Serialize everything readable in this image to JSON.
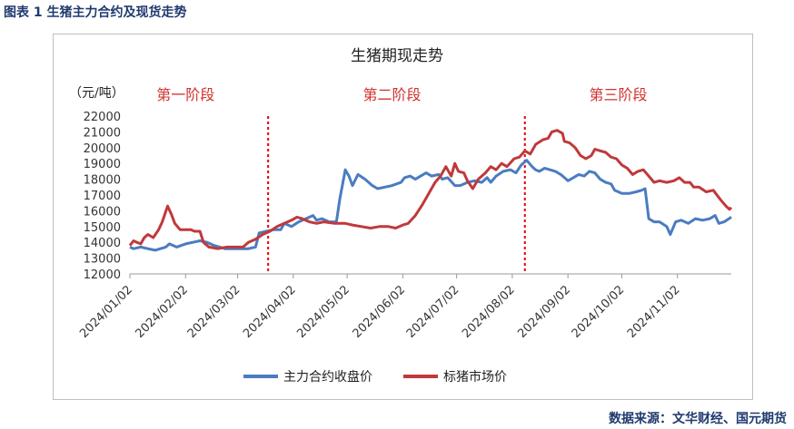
{
  "caption": "图表 1  生猪主力合约及现货走势",
  "source": "数据来源：文华财经、国元期货",
  "colors": {
    "futures": "#4a7cc0",
    "spot": "#c0393b",
    "divider": "#e0000c",
    "stage": "#d0312d"
  },
  "chart_data": {
    "type": "line",
    "title": "生猪期现走势",
    "ylabel": "（元/吨）",
    "ylim": [
      12000,
      22000
    ],
    "yticks": [
      12000,
      13000,
      14000,
      15000,
      16000,
      17000,
      18000,
      19000,
      20000,
      21000,
      22000
    ],
    "x_start": "2024-01-02",
    "x_end": "2024-12-02",
    "xticks": [
      "2024/01/02",
      "2024/02/02",
      "2024/03/02",
      "2024/04/02",
      "2024/05/02",
      "2024/06/02",
      "2024/07/02",
      "2024/08/02",
      "2024/09/02",
      "2024/10/02",
      "2024/11/02"
    ],
    "tick_dates": [
      "2024-01-02",
      "2024-02-02",
      "2024-03-02",
      "2024-04-02",
      "2024-05-02",
      "2024-06-02",
      "2024-07-02",
      "2024-08-02",
      "2024-09-02",
      "2024-10-02",
      "2024-11-02"
    ],
    "stage_dividers": [
      "2024-03-19",
      "2024-08-09"
    ],
    "stages": [
      {
        "label": "第一阶段",
        "center": "2024-02-02"
      },
      {
        "label": "第二阶段",
        "center": "2024-05-27"
      },
      {
        "label": "第三阶段",
        "center": "2024-09-30"
      }
    ],
    "series": [
      {
        "name": "主力合约收盘价",
        "color": "#4a7cc0",
        "points": [
          [
            "2024-01-02",
            13700
          ],
          [
            "2024-01-04",
            13600
          ],
          [
            "2024-01-08",
            13700
          ],
          [
            "2024-01-12",
            13600
          ],
          [
            "2024-01-16",
            13500
          ],
          [
            "2024-01-22",
            13700
          ],
          [
            "2024-01-24",
            13900
          ],
          [
            "2024-01-28",
            13700
          ],
          [
            "2024-02-02",
            13900
          ],
          [
            "2024-02-06",
            14000
          ],
          [
            "2024-02-10",
            14100
          ],
          [
            "2024-02-14",
            14000
          ],
          [
            "2024-02-18",
            13800
          ],
          [
            "2024-02-24",
            13600
          ],
          [
            "2024-03-02",
            13600
          ],
          [
            "2024-03-08",
            13600
          ],
          [
            "2024-03-12",
            13700
          ],
          [
            "2024-03-14",
            14600
          ],
          [
            "2024-03-18",
            14700
          ],
          [
            "2024-03-22",
            14800
          ],
          [
            "2024-03-26",
            14800
          ],
          [
            "2024-03-28",
            15200
          ],
          [
            "2024-04-01",
            15000
          ],
          [
            "2024-04-05",
            15300
          ],
          [
            "2024-04-09",
            15500
          ],
          [
            "2024-04-13",
            15700
          ],
          [
            "2024-04-15",
            15400
          ],
          [
            "2024-04-18",
            15500
          ],
          [
            "2024-04-22",
            15300
          ],
          [
            "2024-04-26",
            15300
          ],
          [
            "2024-04-28",
            16800
          ],
          [
            "2024-05-01",
            18600
          ],
          [
            "2024-05-03",
            18200
          ],
          [
            "2024-05-05",
            17600
          ],
          [
            "2024-05-08",
            18300
          ],
          [
            "2024-05-12",
            18000
          ],
          [
            "2024-05-16",
            17600
          ],
          [
            "2024-05-19",
            17400
          ],
          [
            "2024-05-23",
            17500
          ],
          [
            "2024-05-27",
            17600
          ],
          [
            "2024-06-01",
            17800
          ],
          [
            "2024-06-03",
            18100
          ],
          [
            "2024-06-06",
            18200
          ],
          [
            "2024-06-09",
            18000
          ],
          [
            "2024-06-12",
            18200
          ],
          [
            "2024-06-15",
            18400
          ],
          [
            "2024-06-18",
            18200
          ],
          [
            "2024-06-22",
            18300
          ],
          [
            "2024-06-24",
            18000
          ],
          [
            "2024-06-27",
            18100
          ],
          [
            "2024-07-01",
            17600
          ],
          [
            "2024-07-04",
            17600
          ],
          [
            "2024-07-08",
            17800
          ],
          [
            "2024-07-12",
            17900
          ],
          [
            "2024-07-16",
            17800
          ],
          [
            "2024-07-19",
            18100
          ],
          [
            "2024-07-21",
            17800
          ],
          [
            "2024-07-24",
            18200
          ],
          [
            "2024-07-28",
            18500
          ],
          [
            "2024-08-01",
            18600
          ],
          [
            "2024-08-04",
            18400
          ],
          [
            "2024-08-07",
            18900
          ],
          [
            "2024-08-10",
            19200
          ],
          [
            "2024-08-13",
            18800
          ],
          [
            "2024-08-15",
            18600
          ],
          [
            "2024-08-17",
            18500
          ],
          [
            "2024-08-20",
            18700
          ],
          [
            "2024-08-23",
            18600
          ],
          [
            "2024-08-26",
            18500
          ],
          [
            "2024-08-29",
            18300
          ],
          [
            "2024-09-02",
            17900
          ],
          [
            "2024-09-05",
            18100
          ],
          [
            "2024-09-08",
            18300
          ],
          [
            "2024-09-11",
            18200
          ],
          [
            "2024-09-14",
            18500
          ],
          [
            "2024-09-17",
            18400
          ],
          [
            "2024-09-20",
            18000
          ],
          [
            "2024-09-23",
            17800
          ],
          [
            "2024-09-26",
            17700
          ],
          [
            "2024-09-28",
            17300
          ],
          [
            "2024-10-02",
            17100
          ],
          [
            "2024-10-06",
            17100
          ],
          [
            "2024-10-10",
            17200
          ],
          [
            "2024-10-13",
            17300
          ],
          [
            "2024-10-15",
            17400
          ],
          [
            "2024-10-17",
            15500
          ],
          [
            "2024-10-20",
            15300
          ],
          [
            "2024-10-23",
            15300
          ],
          [
            "2024-10-27",
            15000
          ],
          [
            "2024-10-29",
            14500
          ],
          [
            "2024-11-01",
            15300
          ],
          [
            "2024-11-04",
            15400
          ],
          [
            "2024-11-08",
            15200
          ],
          [
            "2024-11-12",
            15500
          ],
          [
            "2024-11-16",
            15400
          ],
          [
            "2024-11-20",
            15500
          ],
          [
            "2024-11-23",
            15700
          ],
          [
            "2024-11-25",
            15200
          ],
          [
            "2024-11-28",
            15300
          ],
          [
            "2024-12-02",
            15600
          ]
        ]
      },
      {
        "name": "标猪市场价",
        "color": "#c0393b",
        "points": [
          [
            "2024-01-02",
            13800
          ],
          [
            "2024-01-04",
            14100
          ],
          [
            "2024-01-06",
            14000
          ],
          [
            "2024-01-08",
            13900
          ],
          [
            "2024-01-10",
            14300
          ],
          [
            "2024-01-12",
            14500
          ],
          [
            "2024-01-15",
            14300
          ],
          [
            "2024-01-18",
            14800
          ],
          [
            "2024-01-20",
            15300
          ],
          [
            "2024-01-23",
            16300
          ],
          [
            "2024-01-25",
            15800
          ],
          [
            "2024-01-27",
            15200
          ],
          [
            "2024-01-30",
            14800
          ],
          [
            "2024-02-02",
            14800
          ],
          [
            "2024-02-05",
            14800
          ],
          [
            "2024-02-07",
            14700
          ],
          [
            "2024-02-10",
            14700
          ],
          [
            "2024-02-12",
            14000
          ],
          [
            "2024-02-15",
            13700
          ],
          [
            "2024-02-20",
            13600
          ],
          [
            "2024-02-25",
            13700
          ],
          [
            "2024-03-02",
            13700
          ],
          [
            "2024-03-05",
            13700
          ],
          [
            "2024-03-08",
            14000
          ],
          [
            "2024-03-12",
            14200
          ],
          [
            "2024-03-16",
            14500
          ],
          [
            "2024-03-20",
            14700
          ],
          [
            "2024-03-24",
            15000
          ],
          [
            "2024-03-28",
            15200
          ],
          [
            "2024-04-01",
            15400
          ],
          [
            "2024-04-04",
            15600
          ],
          [
            "2024-04-07",
            15500
          ],
          [
            "2024-04-11",
            15300
          ],
          [
            "2024-04-15",
            15200
          ],
          [
            "2024-04-19",
            15300
          ],
          [
            "2024-04-25",
            15200
          ],
          [
            "2024-05-01",
            15200
          ],
          [
            "2024-05-05",
            15100
          ],
          [
            "2024-05-10",
            15000
          ],
          [
            "2024-05-15",
            14900
          ],
          [
            "2024-05-20",
            15000
          ],
          [
            "2024-05-25",
            15000
          ],
          [
            "2024-05-29",
            14900
          ],
          [
            "2024-06-02",
            15100
          ],
          [
            "2024-06-05",
            15200
          ],
          [
            "2024-06-09",
            15700
          ],
          [
            "2024-06-13",
            16400
          ],
          [
            "2024-06-17",
            17200
          ],
          [
            "2024-06-20",
            17800
          ],
          [
            "2024-06-23",
            18200
          ],
          [
            "2024-06-26",
            18800
          ],
          [
            "2024-06-29",
            18200
          ],
          [
            "2024-07-01",
            19000
          ],
          [
            "2024-07-03",
            18500
          ],
          [
            "2024-07-06",
            18400
          ],
          [
            "2024-07-08",
            17900
          ],
          [
            "2024-07-11",
            17400
          ],
          [
            "2024-07-14",
            18000
          ],
          [
            "2024-07-18",
            18400
          ],
          [
            "2024-07-21",
            18800
          ],
          [
            "2024-07-24",
            18600
          ],
          [
            "2024-07-27",
            19000
          ],
          [
            "2024-07-30",
            18800
          ],
          [
            "2024-08-03",
            19300
          ],
          [
            "2024-08-06",
            19400
          ],
          [
            "2024-08-09",
            19800
          ],
          [
            "2024-08-12",
            19600
          ],
          [
            "2024-08-15",
            20200
          ],
          [
            "2024-08-19",
            20500
          ],
          [
            "2024-08-22",
            20600
          ],
          [
            "2024-08-24",
            21000
          ],
          [
            "2024-08-27",
            21100
          ],
          [
            "2024-08-30",
            20900
          ],
          [
            "2024-08-31",
            20400
          ],
          [
            "2024-09-03",
            20300
          ],
          [
            "2024-09-06",
            20000
          ],
          [
            "2024-09-09",
            19500
          ],
          [
            "2024-09-12",
            19300
          ],
          [
            "2024-09-15",
            19500
          ],
          [
            "2024-09-17",
            19900
          ],
          [
            "2024-09-20",
            19800
          ],
          [
            "2024-09-23",
            19700
          ],
          [
            "2024-09-26",
            19400
          ],
          [
            "2024-09-29",
            19300
          ],
          [
            "2024-10-02",
            18900
          ],
          [
            "2024-10-05",
            18700
          ],
          [
            "2024-10-08",
            18300
          ],
          [
            "2024-10-11",
            18500
          ],
          [
            "2024-10-14",
            18600
          ],
          [
            "2024-10-17",
            18200
          ],
          [
            "2024-10-20",
            17800
          ],
          [
            "2024-10-23",
            17900
          ],
          [
            "2024-10-27",
            17800
          ],
          [
            "2024-10-31",
            17900
          ],
          [
            "2024-11-03",
            18100
          ],
          [
            "2024-11-06",
            17800
          ],
          [
            "2024-11-09",
            17800
          ],
          [
            "2024-11-11",
            17500
          ],
          [
            "2024-11-14",
            17500
          ],
          [
            "2024-11-18",
            17200
          ],
          [
            "2024-11-22",
            17300
          ],
          [
            "2024-11-26",
            16700
          ],
          [
            "2024-11-29",
            16300
          ],
          [
            "2024-12-01",
            16100
          ],
          [
            "2024-12-02",
            16200
          ]
        ]
      }
    ]
  }
}
